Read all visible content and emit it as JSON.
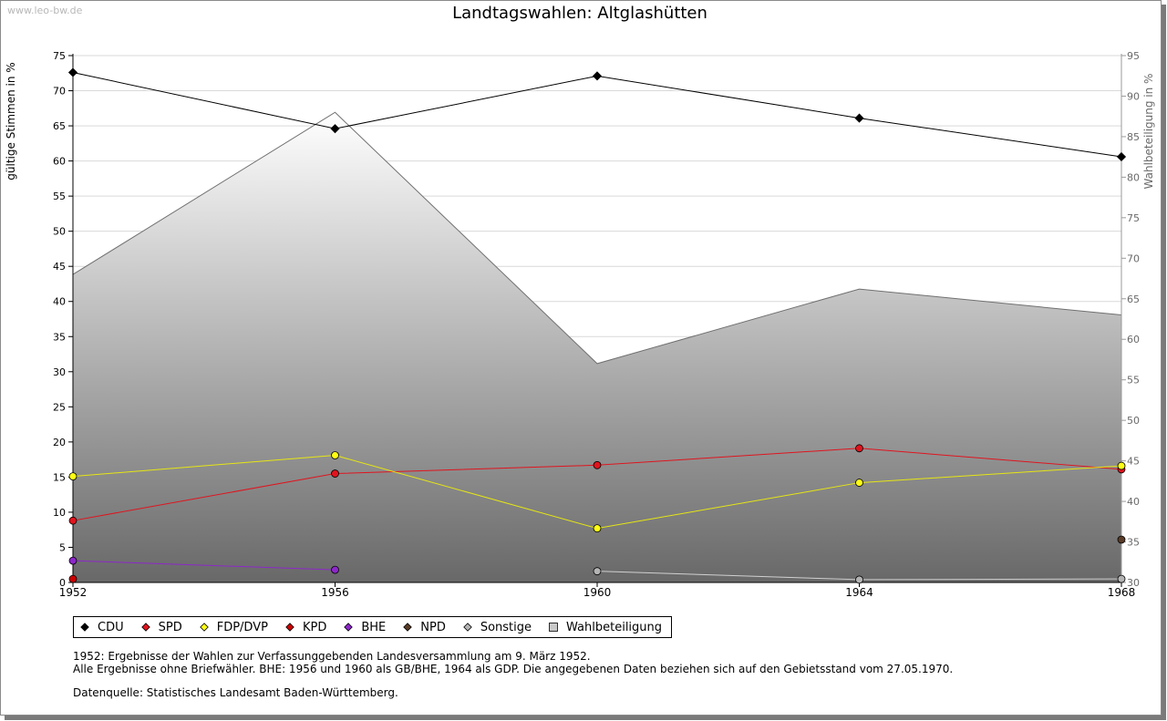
{
  "watermark": "www.leo-bw.de",
  "chart_data": {
    "type": "line",
    "title": "Landtagswahlen: Altglashütten",
    "x": [
      "1952",
      "1956",
      "1960",
      "1964",
      "1968"
    ],
    "ylabel_left": "gültige Stimmen in %",
    "ylabel_right": "Wahlbeteiligung in %",
    "ylim_left": [
      0,
      75
    ],
    "yticks_left": [
      "0",
      "5",
      "10",
      "15",
      "20",
      "25",
      "30",
      "35",
      "40",
      "45",
      "50",
      "55",
      "60",
      "65",
      "70",
      "75"
    ],
    "ylim_right": [
      30,
      95
    ],
    "yticks_right": [
      "30",
      "35",
      "40",
      "45",
      "50",
      "55",
      "60",
      "65",
      "70",
      "75",
      "80",
      "85",
      "90",
      "95"
    ],
    "grid": true,
    "series": [
      {
        "name": "CDU",
        "color": "#000000",
        "line": "#000000",
        "values": [
          72.6,
          64.6,
          72.1,
          66.1,
          60.6
        ]
      },
      {
        "name": "SPD",
        "color": "#e0141e",
        "line": "#e0141e",
        "values": [
          8.8,
          15.5,
          16.7,
          19.1,
          16.1
        ]
      },
      {
        "name": "FDP/DVP",
        "color": "#ffff14",
        "line": "#e6e614",
        "values": [
          15.1,
          18.1,
          7.7,
          14.2,
          16.6
        ]
      },
      {
        "name": "KPD",
        "color": "#cc0000",
        "line": "#cc0000",
        "values": [
          0.5,
          null,
          null,
          null,
          null
        ]
      },
      {
        "name": "BHE",
        "color": "#8c28c8",
        "line": "#8c28c8",
        "values": [
          3.1,
          1.8,
          null,
          null,
          null
        ]
      },
      {
        "name": "NPD",
        "color": "#5a3c28",
        "line": "#5a3c28",
        "values": [
          null,
          null,
          null,
          null,
          6.1
        ]
      },
      {
        "name": "Sonstige",
        "color": "#b4b4b4",
        "line": "#d0d0d0",
        "values": [
          null,
          null,
          1.6,
          0.4,
          0.5
        ]
      }
    ],
    "area": {
      "name": "Wahlbeteiligung",
      "axis": "right",
      "values": [
        68.0,
        88.0,
        57.0,
        66.2,
        63.0
      ]
    }
  },
  "legend": [
    {
      "label": "CDU",
      "color": "#000000",
      "shape": "diamond"
    },
    {
      "label": "SPD",
      "color": "#e0141e",
      "shape": "diamond"
    },
    {
      "label": "FDP/DVP",
      "color": "#ffff14",
      "shape": "diamond"
    },
    {
      "label": "KPD",
      "color": "#cc0000",
      "shape": "diamond"
    },
    {
      "label": "BHE",
      "color": "#8c28c8",
      "shape": "diamond"
    },
    {
      "label": "NPD",
      "color": "#5a3c28",
      "shape": "diamond"
    },
    {
      "label": "Sonstige",
      "color": "#b4b4b4",
      "shape": "diamond"
    },
    {
      "label": "Wahlbeteiligung",
      "color": "#c8c8c8",
      "shape": "square"
    }
  ],
  "notes": {
    "line1": "1952: Ergebnisse der Wahlen zur Verfassunggebenden Landesversammlung am 9. März 1952.",
    "line2": "Alle Ergebnisse ohne Briefwähler. BHE: 1956 und 1960 als GB/BHE, 1964 als GDP. Die angegebenen Daten beziehen sich auf den Gebietsstand vom 27.05.1970.",
    "source": "Datenquelle: Statistisches Landesamt Baden-Württemberg."
  }
}
